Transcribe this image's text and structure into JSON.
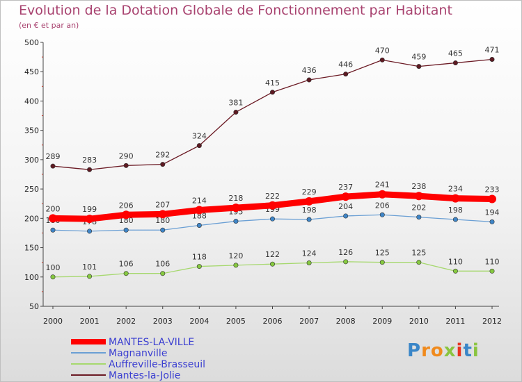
{
  "chart_data": {
    "type": "line",
    "title": "Evolution de la Dotation Globale de Fonctionnement par Habitant",
    "subtitle": "(en € et par an)",
    "x": [
      "2000",
      "2001",
      "2002",
      "2003",
      "2004",
      "2005",
      "2006",
      "2007",
      "2008",
      "2009",
      "2010",
      "2011",
      "2012"
    ],
    "ylim": [
      50,
      500
    ],
    "yticks": [
      50,
      100,
      150,
      200,
      250,
      300,
      350,
      400,
      450,
      500
    ],
    "series": [
      {
        "name": "Mantes-la-Jolie",
        "color": "#6b1a24",
        "marker": "#5e1a22",
        "values": [
          289,
          283,
          290,
          292,
          324,
          381,
          415,
          436,
          446,
          470,
          459,
          465,
          471
        ]
      },
      {
        "name": "Auffreville-Brasseuil",
        "color": "#a6d86e",
        "marker": "#86c940",
        "values": [
          100,
          101,
          106,
          106,
          118,
          120,
          122,
          124,
          126,
          125,
          125,
          110,
          110
        ]
      },
      {
        "name": "Magnanville",
        "color": "#6a9fd4",
        "marker": "#3f86c8",
        "values": [
          180,
          178,
          180,
          180,
          188,
          195,
          199,
          198,
          204,
          206,
          202,
          198,
          194
        ]
      },
      {
        "name": "MANTES-LA-VILLE",
        "color": "#ff0000",
        "marker": "#ff0000",
        "values": [
          200,
          199,
          206,
          207,
          214,
          218,
          222,
          229,
          237,
          241,
          238,
          234,
          233
        ]
      }
    ],
    "legend": [
      "MANTES-LA-VILLE",
      "Magnanville",
      "Auffreville-Brasseuil",
      "Mantes-la-Jolie"
    ],
    "legend_color": "#3b3fd1"
  },
  "logo": {
    "text": "Proxiti",
    "letters": [
      "P",
      "r",
      "o",
      "x",
      "i",
      "t",
      "i"
    ],
    "colors": [
      "#3a86c8",
      "#f08a1c",
      "#f08a1c",
      "#8ac43f",
      "#e8331f",
      "#3a86c8",
      "#8ac43f"
    ]
  }
}
